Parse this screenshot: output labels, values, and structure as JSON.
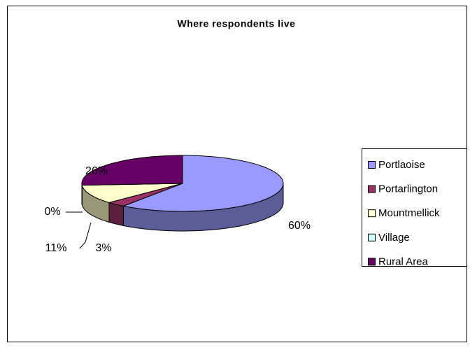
{
  "chart_data": {
    "type": "pie3d",
    "title": "Where respondents live",
    "categories": [
      "Portlaoise",
      "Portarlington",
      "Mountmellick",
      "Village",
      "Rural Area"
    ],
    "values": [
      60,
      3,
      11,
      0,
      26
    ],
    "value_labels": [
      "60%",
      "3%",
      "11%",
      "0%",
      "26%"
    ],
    "colors": [
      "#9999ff",
      "#993366",
      "#ffffcc",
      "#ccffff",
      "#660066"
    ],
    "legend": "right"
  }
}
